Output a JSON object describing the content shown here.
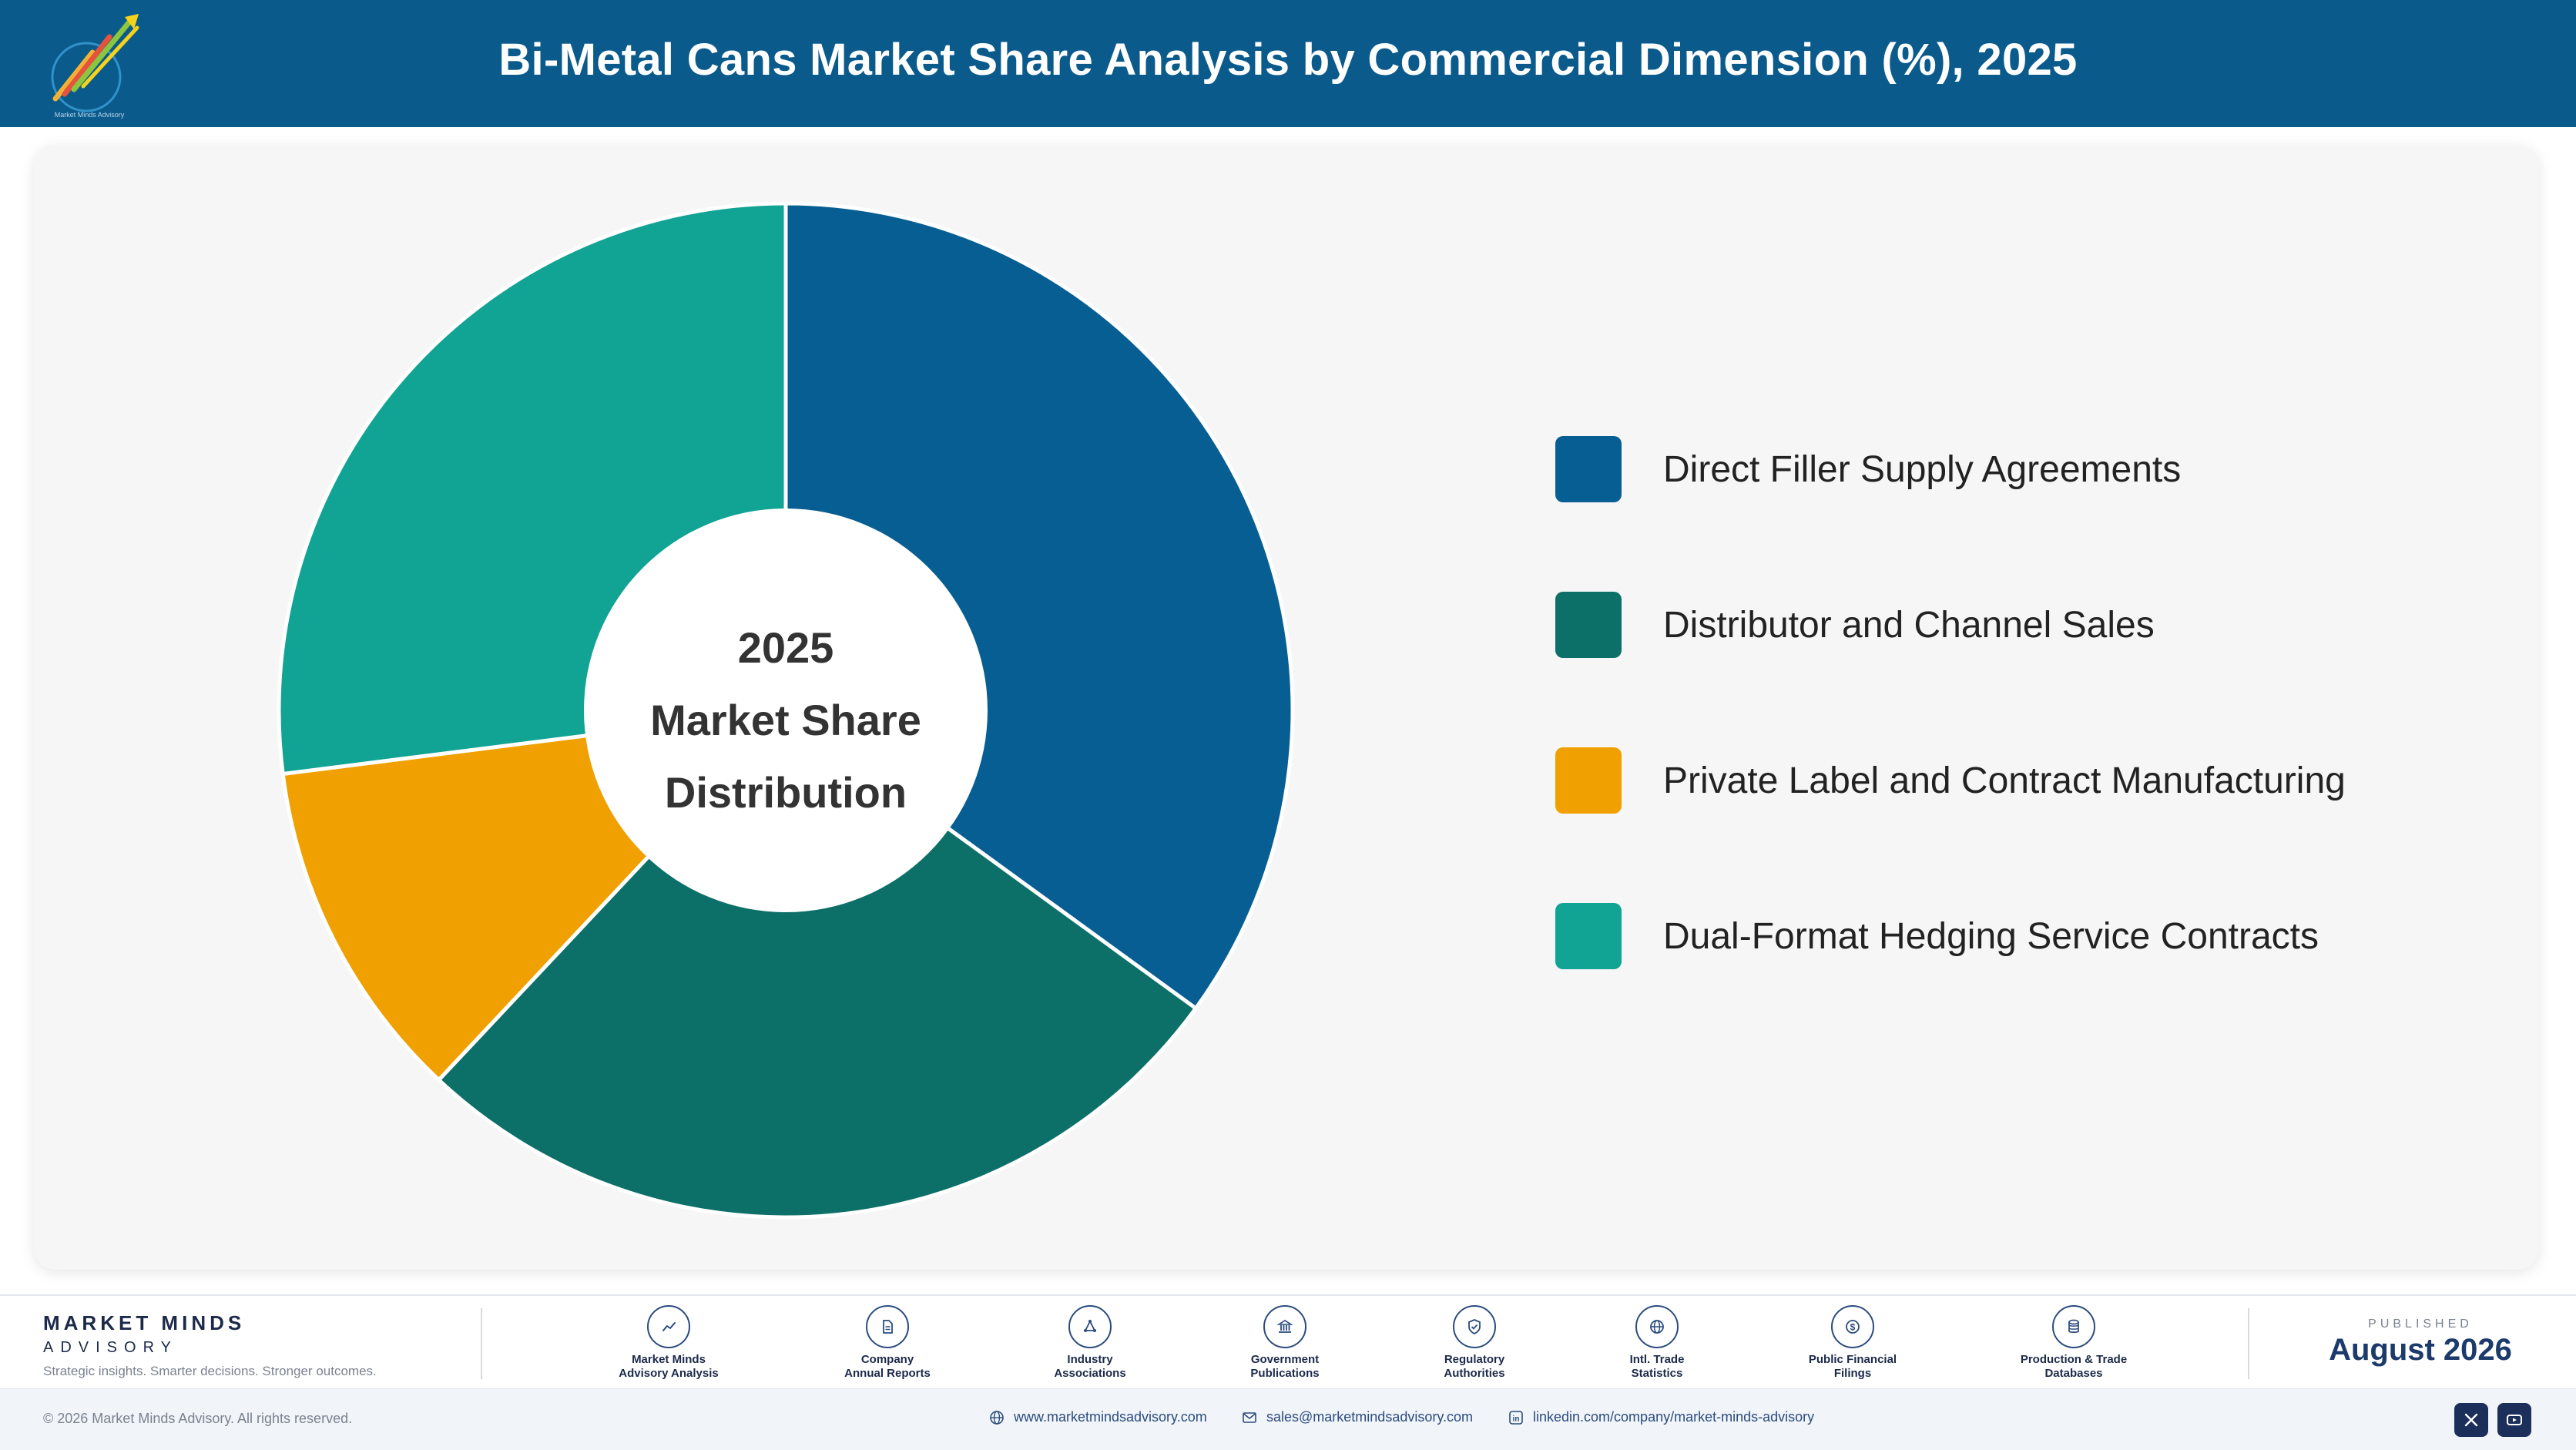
{
  "header": {
    "title": "Bi-Metal Cans Market Share Analysis by Commercial Dimension (%), 2025",
    "logo_caption": "Market Minds Advisory"
  },
  "chart_data": {
    "type": "pie",
    "style": "donut",
    "center_label": [
      "2025",
      "Market Share",
      "Distribution"
    ],
    "categories": [
      "Direct Filler Supply Agreements",
      "Distributor and Channel Sales",
      "Private Label and Contract Manufacturing",
      "Dual-Format Hedging Service Contracts"
    ],
    "values": [
      35,
      27,
      11,
      27
    ],
    "colors": [
      "#075e92",
      "#0c7068",
      "#f0a000",
      "#11a393"
    ],
    "legend_position": "right",
    "start_angle_deg": 0,
    "direction": "clockwise"
  },
  "footer": {
    "brand_name": "MARKET MINDS",
    "brand_sub": "ADVISORY",
    "tagline": "Strategic insights. Smarter decisions. Stronger outcomes.",
    "sources": [
      {
        "label": "Market Minds\nAdvisory Analysis",
        "icon": "trend-line-icon"
      },
      {
        "label": "Company\nAnnual Reports",
        "icon": "document-icon"
      },
      {
        "label": "Industry\nAssociations",
        "icon": "network-icon"
      },
      {
        "label": "Government\nPublications",
        "icon": "government-building-icon"
      },
      {
        "label": "Regulatory\nAuthorities",
        "icon": "shield-check-icon"
      },
      {
        "label": "Intl. Trade\nStatistics",
        "icon": "globe-icon"
      },
      {
        "label": "Public Financial\nFilings",
        "icon": "dollar-coin-icon"
      },
      {
        "label": "Production & Trade\nDatabases",
        "icon": "database-icon"
      }
    ],
    "published_label": "PUBLISHED",
    "published_date": "August 2026"
  },
  "bottom": {
    "copyright": "© 2026 Market Minds Advisory. All rights reserved.",
    "website": "www.marketmindsadvisory.com",
    "email": "sales@marketmindsadvisory.com",
    "linkedin": "linkedin.com/company/market-minds-advisory"
  }
}
